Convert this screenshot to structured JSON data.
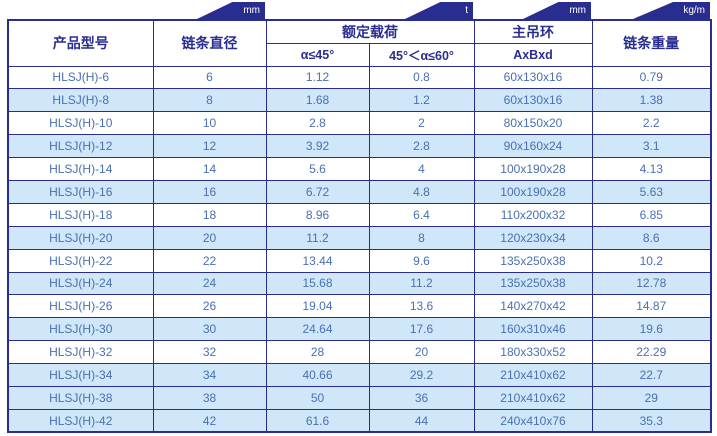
{
  "colors": {
    "navy": "#2a2d90",
    "row_blue": "#cfe7f8",
    "cell_text_blue": "#4a6fb3",
    "badge_text": "#ffffff"
  },
  "unit_badges": {
    "diameter_unit": "mm",
    "load_unit": "t",
    "ring_unit": "mm",
    "weight_unit": "kg/m"
  },
  "header": {
    "model": "产品型号",
    "diameter": "链条直径",
    "rated_load": "额定载荷",
    "load_sub_45": "α≤45°",
    "load_sub_60": "45°＜α≤60°",
    "main_ring": "主吊环",
    "ring_sub": "AxBxd",
    "weight": "链条重量"
  },
  "rows": [
    {
      "model": "HLSJ(H)-6",
      "diameter": "6",
      "load_45": "1.12",
      "load_60": "0.8",
      "ring": "60x130x16",
      "weight": "0.79",
      "shaded": false
    },
    {
      "model": "HLSJ(H)-8",
      "diameter": "8",
      "load_45": "1.68",
      "load_60": "1.2",
      "ring": "60x130x16",
      "weight": "1.38",
      "shaded": true
    },
    {
      "model": "HLSJ(H)-10",
      "diameter": "10",
      "load_45": "2.8",
      "load_60": "2",
      "ring": "80x150x20",
      "weight": "2.2",
      "shaded": false
    },
    {
      "model": "HLSJ(H)-12",
      "diameter": "12",
      "load_45": "3.92",
      "load_60": "2.8",
      "ring": "90x160x24",
      "weight": "3.1",
      "shaded": true
    },
    {
      "model": "HLSJ(H)-14",
      "diameter": "14",
      "load_45": "5.6",
      "load_60": "4",
      "ring": "100x190x28",
      "weight": "4.13",
      "shaded": false
    },
    {
      "model": "HLSJ(H)-16",
      "diameter": "16",
      "load_45": "6.72",
      "load_60": "4.8",
      "ring": "100x190x28",
      "weight": "5.63",
      "shaded": true
    },
    {
      "model": "HLSJ(H)-18",
      "diameter": "18",
      "load_45": "8.96",
      "load_60": "6.4",
      "ring": "110x200x32",
      "weight": "6.85",
      "shaded": false
    },
    {
      "model": "HLSJ(H)-20",
      "diameter": "20",
      "load_45": "11.2",
      "load_60": "8",
      "ring": "120x230x34",
      "weight": "8.6",
      "shaded": true
    },
    {
      "model": "HLSJ(H)-22",
      "diameter": "22",
      "load_45": "13.44",
      "load_60": "9.6",
      "ring": "135x250x38",
      "weight": "10.2",
      "shaded": false
    },
    {
      "model": "HLSJ(H)-24",
      "diameter": "24",
      "load_45": "15.68",
      "load_60": "11.2",
      "ring": "135x250x38",
      "weight": "12.78",
      "shaded": true
    },
    {
      "model": "HLSJ(H)-26",
      "diameter": "26",
      "load_45": "19.04",
      "load_60": "13.6",
      "ring": "140x270x42",
      "weight": "14.87",
      "shaded": false
    },
    {
      "model": "HLSJ(H)-30",
      "diameter": "30",
      "load_45": "24.64",
      "load_60": "17.6",
      "ring": "160x310x46",
      "weight": "19.6",
      "shaded": true
    },
    {
      "model": "HLSJ(H)-32",
      "diameter": "32",
      "load_45": "28",
      "load_60": "20",
      "ring": "180x330x52",
      "weight": "22.29",
      "shaded": false
    },
    {
      "model": "HLSJ(H)-34",
      "diameter": "34",
      "load_45": "40.66",
      "load_60": "29.2",
      "ring": "210x410x62",
      "weight": "22.7",
      "shaded": true
    },
    {
      "model": "HLSJ(H)-38",
      "diameter": "38",
      "load_45": "50",
      "load_60": "36",
      "ring": "210x410x62",
      "weight": "29",
      "shaded": true
    },
    {
      "model": "HLSJ(H)-42",
      "diameter": "42",
      "load_45": "61.6",
      "load_60": "44",
      "ring": "240x410x76",
      "weight": "35.3",
      "shaded": true
    }
  ]
}
